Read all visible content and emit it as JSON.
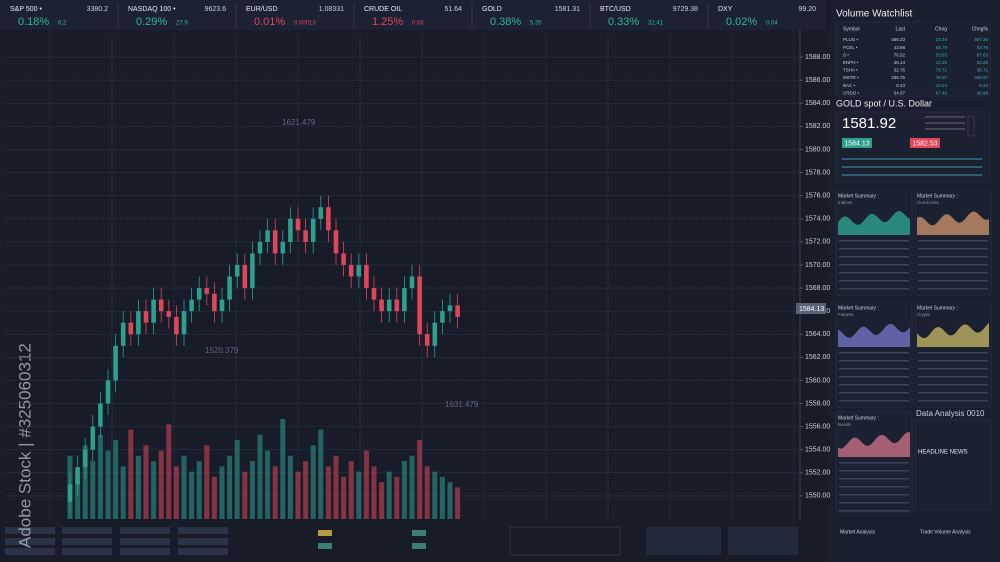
{
  "ticker_bar": [
    {
      "name": "S&P 500 •",
      "last": "3380.2",
      "change_pct": "0.18%",
      "change": "6.2",
      "color": "#2fb59b"
    },
    {
      "name": "NASDAQ 100 •",
      "last": "9623.6",
      "change_pct": "0.29%",
      "change": "27.9",
      "color": "#2fb59b"
    },
    {
      "name": "EUR/USD",
      "last": "1.08331",
      "change_pct": "0.01%",
      "change": "0.00013",
      "color": "#e0455a"
    },
    {
      "name": "CRUDE OIL",
      "last": "51.64",
      "change_pct": "1.25%",
      "change": "0.66",
      "color": "#e0455a"
    },
    {
      "name": "GOLD",
      "last": "1581.31",
      "change_pct": "0.38%",
      "change": "5.35",
      "color": "#2fb59b"
    },
    {
      "name": "BTC/USD",
      "last": "9729.38",
      "change_pct": "0.33%",
      "change": "32.41",
      "color": "#2fb59b"
    },
    {
      "name": "DXY",
      "last": "99.20",
      "change_pct": "0.02%",
      "change": "0.04",
      "color": "#2fb59b"
    }
  ],
  "chart_data": {
    "type": "candlestick",
    "grid": true,
    "up_color": "#2e9e8f",
    "down_color": "#e0455a",
    "open": [
      1549.5,
      1551,
      1552.5,
      1554,
      1556,
      1558,
      1560,
      1563,
      1565,
      1564,
      1566,
      1565,
      1567,
      1566,
      1565.5,
      1564,
      1566,
      1567,
      1568,
      1567.5,
      1566,
      1567,
      1569,
      1570,
      1568,
      1571,
      1572,
      1573,
      1571,
      1572,
      1574,
      1573,
      1572,
      1574,
      1575,
      1573,
      1571,
      1570,
      1569,
      1570,
      1568,
      1567,
      1566,
      1567,
      1566,
      1568,
      1569,
      1564,
      1563,
      1565,
      1566,
      1566.5
    ],
    "high": [
      1552,
      1553.5,
      1555,
      1557,
      1559,
      1561,
      1564,
      1566,
      1566,
      1567,
      1567,
      1568,
      1568,
      1567,
      1566.5,
      1567,
      1568,
      1569,
      1569,
      1568.5,
      1568,
      1570,
      1571,
      1571,
      1572,
      1573,
      1574,
      1574,
      1573,
      1575,
      1575,
      1574,
      1575,
      1576,
      1576,
      1574,
      1572,
      1571,
      1571,
      1571,
      1569,
      1568,
      1568,
      1568,
      1569,
      1570,
      1570,
      1565,
      1566,
      1567,
      1567.5,
      1567.5
    ],
    "low": [
      1548.5,
      1550,
      1551.5,
      1553,
      1555,
      1557,
      1559,
      1562,
      1563,
      1563,
      1564,
      1564,
      1565,
      1564.5,
      1563,
      1563,
      1565,
      1566,
      1566.5,
      1565,
      1565,
      1566,
      1568,
      1567,
      1567,
      1570,
      1571,
      1570,
      1570,
      1571,
      1572,
      1571,
      1571,
      1573,
      1572,
      1570,
      1569,
      1568,
      1568,
      1567,
      1566,
      1565,
      1565,
      1565,
      1565,
      1567,
      1563,
      1562,
      1562,
      1564,
      1565,
      1564.5
    ],
    "close": [
      1551,
      1552.5,
      1554,
      1556,
      1558,
      1560,
      1563,
      1565,
      1564,
      1566,
      1565,
      1567,
      1566,
      1565.5,
      1564,
      1566,
      1567,
      1568,
      1567.5,
      1566,
      1567,
      1569,
      1570,
      1568,
      1571,
      1572,
      1573,
      1571,
      1572,
      1574,
      1573,
      1572,
      1574,
      1575,
      1573,
      1571,
      1570,
      1569,
      1570,
      1568,
      1567,
      1566,
      1567,
      1566,
      1568,
      1569,
      1564,
      1563,
      1565,
      1566,
      1566.5,
      1565.5
    ],
    "volume": [
      60,
      45,
      70,
      55,
      80,
      65,
      75,
      50,
      85,
      60,
      70,
      55,
      65,
      90,
      50,
      60,
      45,
      55,
      70,
      40,
      50,
      60,
      75,
      45,
      55,
      80,
      65,
      50,
      95,
      60,
      45,
      55,
      70,
      85,
      50,
      60,
      40,
      55,
      45,
      65,
      50,
      35,
      45,
      40,
      55,
      60,
      75,
      50,
      45,
      40,
      35,
      30
    ],
    "ylim": [
      1548,
      1590
    ],
    "yticks": [
      {
        "value": 1550,
        "label": "1550.00"
      },
      {
        "value": 1552,
        "label": "1552.00"
      },
      {
        "value": 1554,
        "label": "1554.00"
      },
      {
        "value": 1556,
        "label": "1556.00"
      },
      {
        "value": 1558,
        "label": "1558.00"
      },
      {
        "value": 1560,
        "label": "1560.00"
      },
      {
        "value": 1562,
        "label": "1562.00"
      },
      {
        "value": 1564,
        "label": "1564.00"
      },
      {
        "value": 1566,
        "label": "1566.00"
      },
      {
        "value": 1568,
        "label": "1568.00"
      },
      {
        "value": 1570,
        "label": "1570.00"
      },
      {
        "value": 1572,
        "label": "1572.00"
      },
      {
        "value": 1574,
        "label": "1574.00"
      },
      {
        "value": 1576,
        "label": "1576.00"
      },
      {
        "value": 1578,
        "label": "1578.00"
      },
      {
        "value": 1580,
        "label": "1580.00"
      },
      {
        "value": 1582,
        "label": "1582.00"
      },
      {
        "value": 1584,
        "label": "1584.00"
      },
      {
        "value": 1586,
        "label": "1586.00"
      },
      {
        "value": 1588,
        "label": "1588.00"
      }
    ],
    "annotations": [
      "1621.479",
      "1520.379",
      "1631.479"
    ],
    "price_tag": "1584.13"
  },
  "watermark": "Adobe Stock | #325060312",
  "watchlist": {
    "title": "Volume Watchlist",
    "columns": [
      "Symbol",
      "Last",
      "Chng",
      "Chng%"
    ],
    "rows": [
      [
        "PLUG •",
        "456.23",
        "23.34",
        "467.34"
      ],
      [
        "PCEL •",
        "43.68",
        "68.79",
        "53.79"
      ],
      [
        "S •",
        "76.52",
        "53.63",
        "87.63"
      ],
      [
        "ENPH •",
        "45.14",
        "14.25",
        "53.25"
      ],
      [
        "TSHA •",
        "32.76",
        "78.71",
        "36.71"
      ],
      [
        "MSTR •",
        "336.76",
        "78.97",
        "345.97"
      ],
      [
        "BAC •",
        "8.43",
        "43.24",
        "9.34"
      ],
      [
        "CRDO •",
        "54.97",
        "67.46",
        "46.98"
      ]
    ]
  },
  "gold_panel": {
    "title": "GOLD spot / U.S. Dollar",
    "price": "1581.92",
    "bid": "1584.13",
    "ask": "1582.53"
  },
  "market_summaries": [
    {
      "title": "Market Summary :",
      "subtitle": "Indices"
    },
    {
      "title": "Market Summary :",
      "subtitle": "Currencies"
    },
    {
      "title": "Market Summary :",
      "subtitle": "Futures"
    },
    {
      "title": "Market Summary :",
      "subtitle": "Crypto"
    },
    {
      "title": "Market Summary :",
      "subtitle": "Bonds"
    }
  ],
  "analysis": {
    "title": "Data Analysis 0010",
    "headline": "HEADLINE NEWS"
  },
  "footer": {
    "left": "Market Analysis",
    "right": "Trade Volume Analysis"
  }
}
